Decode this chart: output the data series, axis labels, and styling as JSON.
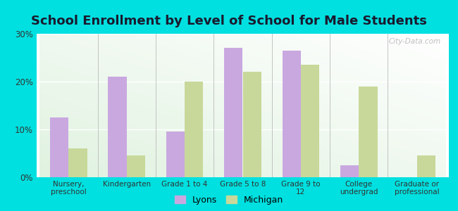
{
  "title": "School Enrollment by Level of School for Male Students",
  "categories": [
    "Nursery,\npreschool",
    "Kindergarten",
    "Grade 1 to 4",
    "Grade 5 to 8",
    "Grade 9 to\n12",
    "College\nundergrad",
    "Graduate or\nprofessional"
  ],
  "lyons": [
    12.5,
    21.0,
    9.5,
    27.0,
    26.5,
    2.5,
    0.0
  ],
  "michigan": [
    6.0,
    4.5,
    20.0,
    22.0,
    23.5,
    19.0,
    4.5
  ],
  "lyons_color": "#c9a8e0",
  "michigan_color": "#c8d89a",
  "background_outer": "#00e0e0",
  "ylim": [
    0,
    30
  ],
  "yticks": [
    0,
    10,
    20,
    30
  ],
  "ytick_labels": [
    "0%",
    "10%",
    "20%",
    "30%"
  ],
  "title_fontsize": 13,
  "legend_labels": [
    "Lyons",
    "Michigan"
  ],
  "watermark": "City-Data.com",
  "bar_width": 0.32
}
